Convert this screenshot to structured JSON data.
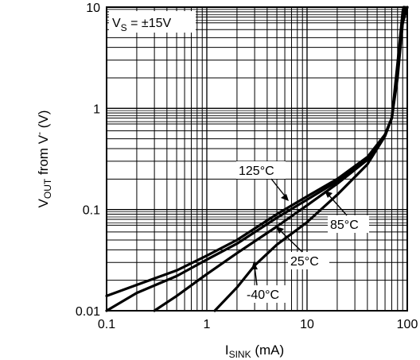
{
  "chart_data": {
    "type": "line",
    "xscale": "log",
    "yscale": "log",
    "xlim": [
      0.1,
      100
    ],
    "ylim": [
      0.01,
      10
    ],
    "grid": true,
    "xlabel": {
      "main": "I",
      "sub": "SINK",
      "rest": " (mA)"
    },
    "ylabel": {
      "main": "V",
      "sub": "OUT",
      "rest": " from V",
      "sup": "-",
      "end": " (V)"
    },
    "x_ticks": [
      {
        "value": 0.1,
        "label": "0.1"
      },
      {
        "value": 1,
        "label": "1"
      },
      {
        "value": 10,
        "label": "10"
      },
      {
        "value": 100,
        "label": "100"
      }
    ],
    "y_ticks": [
      {
        "value": 0.01,
        "label": "0.01"
      },
      {
        "value": 0.1,
        "label": "0.1"
      },
      {
        "value": 1,
        "label": "1"
      },
      {
        "value": 10,
        "label": "10"
      }
    ],
    "condition": {
      "main": "V",
      "sub": "S",
      "rest": " = ±15V"
    },
    "series": [
      {
        "name": "125°C",
        "points": [
          [
            0.1,
            0.014
          ],
          [
            0.2,
            0.018
          ],
          [
            0.5,
            0.025
          ],
          [
            1,
            0.035
          ],
          [
            2,
            0.05
          ],
          [
            5,
            0.09
          ],
          [
            10,
            0.135
          ],
          [
            20,
            0.2
          ],
          [
            40,
            0.33
          ],
          [
            60,
            0.55
          ],
          [
            70,
            0.8
          ],
          [
            80,
            2
          ],
          [
            90,
            7
          ],
          [
            100,
            10
          ]
        ]
      },
      {
        "name": "85°C",
        "points": [
          [
            0.1,
            0.01
          ],
          [
            0.2,
            0.015
          ],
          [
            0.5,
            0.022
          ],
          [
            1,
            0.032
          ],
          [
            2,
            0.046
          ],
          [
            5,
            0.083
          ],
          [
            10,
            0.125
          ],
          [
            20,
            0.19
          ],
          [
            40,
            0.32
          ],
          [
            60,
            0.55
          ],
          [
            70,
            0.8
          ],
          [
            80,
            2.2
          ],
          [
            90,
            7
          ],
          [
            100,
            10
          ]
        ]
      },
      {
        "name": "25°C",
        "points": [
          [
            0.3,
            0.01
          ],
          [
            0.5,
            0.014
          ],
          [
            1,
            0.023
          ],
          [
            2,
            0.037
          ],
          [
            5,
            0.068
          ],
          [
            10,
            0.11
          ],
          [
            20,
            0.18
          ],
          [
            40,
            0.31
          ],
          [
            60,
            0.55
          ],
          [
            70,
            0.8
          ],
          [
            80,
            2.5
          ],
          [
            90,
            8
          ],
          [
            95,
            10
          ]
        ]
      },
      {
        "name": "-40°C",
        "points": [
          [
            1.2,
            0.01
          ],
          [
            2,
            0.017
          ],
          [
            3,
            0.028
          ],
          [
            5,
            0.045
          ],
          [
            10,
            0.075
          ],
          [
            20,
            0.14
          ],
          [
            40,
            0.28
          ],
          [
            60,
            0.53
          ],
          [
            70,
            0.8
          ],
          [
            80,
            2.8
          ],
          [
            90,
            9
          ],
          [
            92,
            10
          ]
        ]
      }
    ]
  }
}
